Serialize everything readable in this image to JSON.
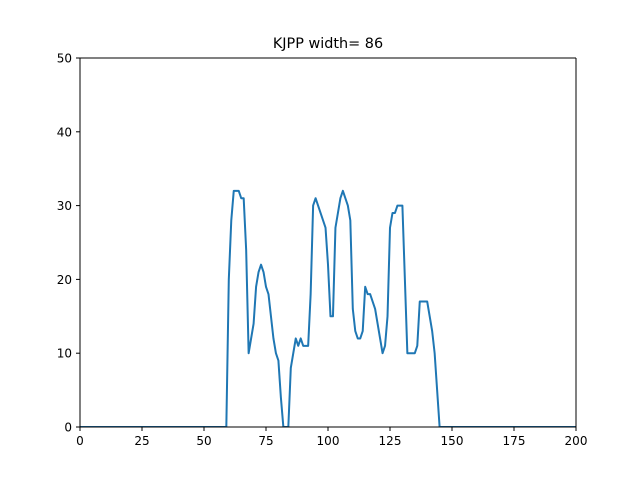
{
  "chart_data": {
    "type": "line",
    "title": "KJPP width= 86",
    "xlabel": "",
    "ylabel": "",
    "xlim": [
      0,
      200
    ],
    "ylim": [
      0,
      50
    ],
    "xticks": [
      0,
      25,
      50,
      75,
      100,
      125,
      150,
      175,
      200
    ],
    "yticks": [
      0,
      10,
      20,
      30,
      40,
      50
    ],
    "grid": false,
    "line_color": "#1f77b4",
    "series": [
      {
        "x": [
          0,
          59,
          60,
          61,
          62,
          63,
          64,
          65,
          66,
          67,
          68,
          69,
          70,
          71,
          72,
          73,
          74,
          75,
          76,
          77,
          78,
          79,
          80,
          81,
          82,
          83,
          84,
          85,
          86,
          87,
          88,
          89,
          90,
          91,
          92,
          93,
          94,
          95,
          96,
          97,
          98,
          99,
          100,
          101,
          102,
          103,
          104,
          105,
          106,
          107,
          108,
          109,
          110,
          111,
          112,
          113,
          114,
          115,
          116,
          117,
          118,
          119,
          120,
          121,
          122,
          123,
          124,
          125,
          126,
          127,
          128,
          129,
          130,
          131,
          132,
          133,
          134,
          135,
          136,
          137,
          138,
          139,
          140,
          141,
          142,
          143,
          144,
          145,
          200
        ],
        "y": [
          0,
          0,
          20,
          28,
          32,
          32,
          32,
          31,
          31,
          24,
          10,
          12,
          14,
          19,
          21,
          22,
          21,
          19,
          18,
          15,
          12,
          10,
          9,
          4,
          0,
          0,
          0,
          8,
          10,
          12,
          11,
          12,
          11,
          11,
          11,
          18,
          30,
          31,
          30,
          29,
          28,
          27,
          22,
          15,
          15,
          27,
          29,
          31,
          32,
          31,
          30,
          28,
          16,
          13,
          12,
          12,
          13,
          19,
          18,
          18,
          17,
          16,
          14,
          12,
          10,
          11,
          15,
          27,
          29,
          29,
          30,
          30,
          30,
          20,
          10,
          10,
          10,
          10,
          11,
          17,
          17,
          17,
          17,
          15,
          13,
          10,
          5,
          0,
          0
        ]
      }
    ]
  }
}
